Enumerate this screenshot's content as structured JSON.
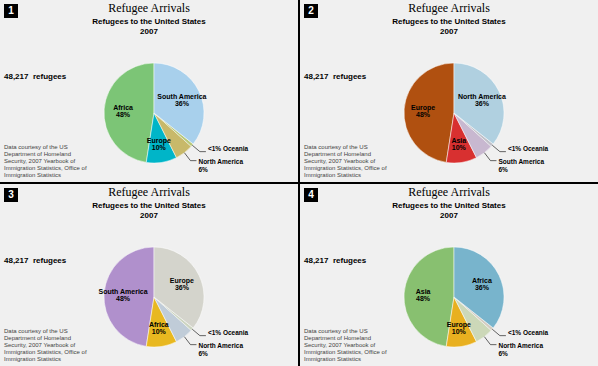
{
  "chart_data": [
    {
      "type": "pie",
      "title": "Refugee Arrivals",
      "subtitle": "Refugees to the United States\n2007",
      "annotations": [
        "1",
        "48,217  refugees",
        "Data courtesy of the US\nDepartment of Homeland\nSecurity, 2007 Yearbook of\nImmigration Statistics, Office of\nImmigration Statistics"
      ],
      "categories": [
        "Africa\n48%",
        "Europe\n10%",
        "North America\n6%",
        "<1% Oceania",
        "South America\n36%"
      ],
      "values": [
        48,
        10,
        6,
        1,
        36
      ],
      "colors": [
        "#7cc576",
        "#00b5c8",
        "#c8b96a",
        "#b8c878",
        "#a8d0ec"
      ]
    },
    {
      "type": "pie",
      "title": "Refugee Arrivals",
      "subtitle": "Refugees to the United States\n2007",
      "annotations": [
        "2",
        "48,217  refugees",
        "Data courtesy of the US\nDepartment of Homeland\nSecurity, 2007 Yearbook of\nImmigration Statistics, Office of\nImmigration Statistics"
      ],
      "categories": [
        "Europe\n48%",
        "Asia\n10%",
        "South America\n6%",
        "<1% Oceania",
        "North America\n36%"
      ],
      "values": [
        48,
        10,
        6,
        1,
        36
      ],
      "colors": [
        "#b05010",
        "#d83030",
        "#c8b8d0",
        "#c0c0c8",
        "#b0d0e0"
      ]
    },
    {
      "type": "pie",
      "title": "Refugee Arrivals",
      "subtitle": "Refugees to the United States\n2007",
      "annotations": [
        "3",
        "48,217  refugees",
        "Data courtesy of the US\nDepartment of Homeland\nSecurity, 2007 Yearbook of\nImmigration Statistics, Office of\nImmigration Statistics"
      ],
      "categories": [
        "South America\n48%",
        "Africa\n10%",
        "North America\n6%",
        "<1% Oceania",
        "Europe\n36%"
      ],
      "values": [
        48,
        10,
        6,
        1,
        36
      ],
      "colors": [
        "#b090cc",
        "#e8b820",
        "#c0ccd8",
        "#ccd4c0",
        "#d4d4cc"
      ]
    },
    {
      "type": "pie",
      "title": "Refugee Arrivals",
      "subtitle": "Refugees to the United States\n2007",
      "annotations": [
        "4",
        "48,217  refugees",
        "Data courtesy of the US\nDepartment of Homeland\nSecurity, 2007 Yearbook of\nImmigration Statistics, Office of\nImmigration Statistics"
      ],
      "categories": [
        "Asia\n48%",
        "Europe\n10%",
        "North America\n6%",
        "<1% Oceania",
        "Africa\n36%"
      ],
      "values": [
        48,
        10,
        6,
        1,
        36
      ],
      "colors": [
        "#88c070",
        "#e8b020",
        "#ccd8b8",
        "#d4ccc0",
        "#78b4cc"
      ]
    }
  ]
}
